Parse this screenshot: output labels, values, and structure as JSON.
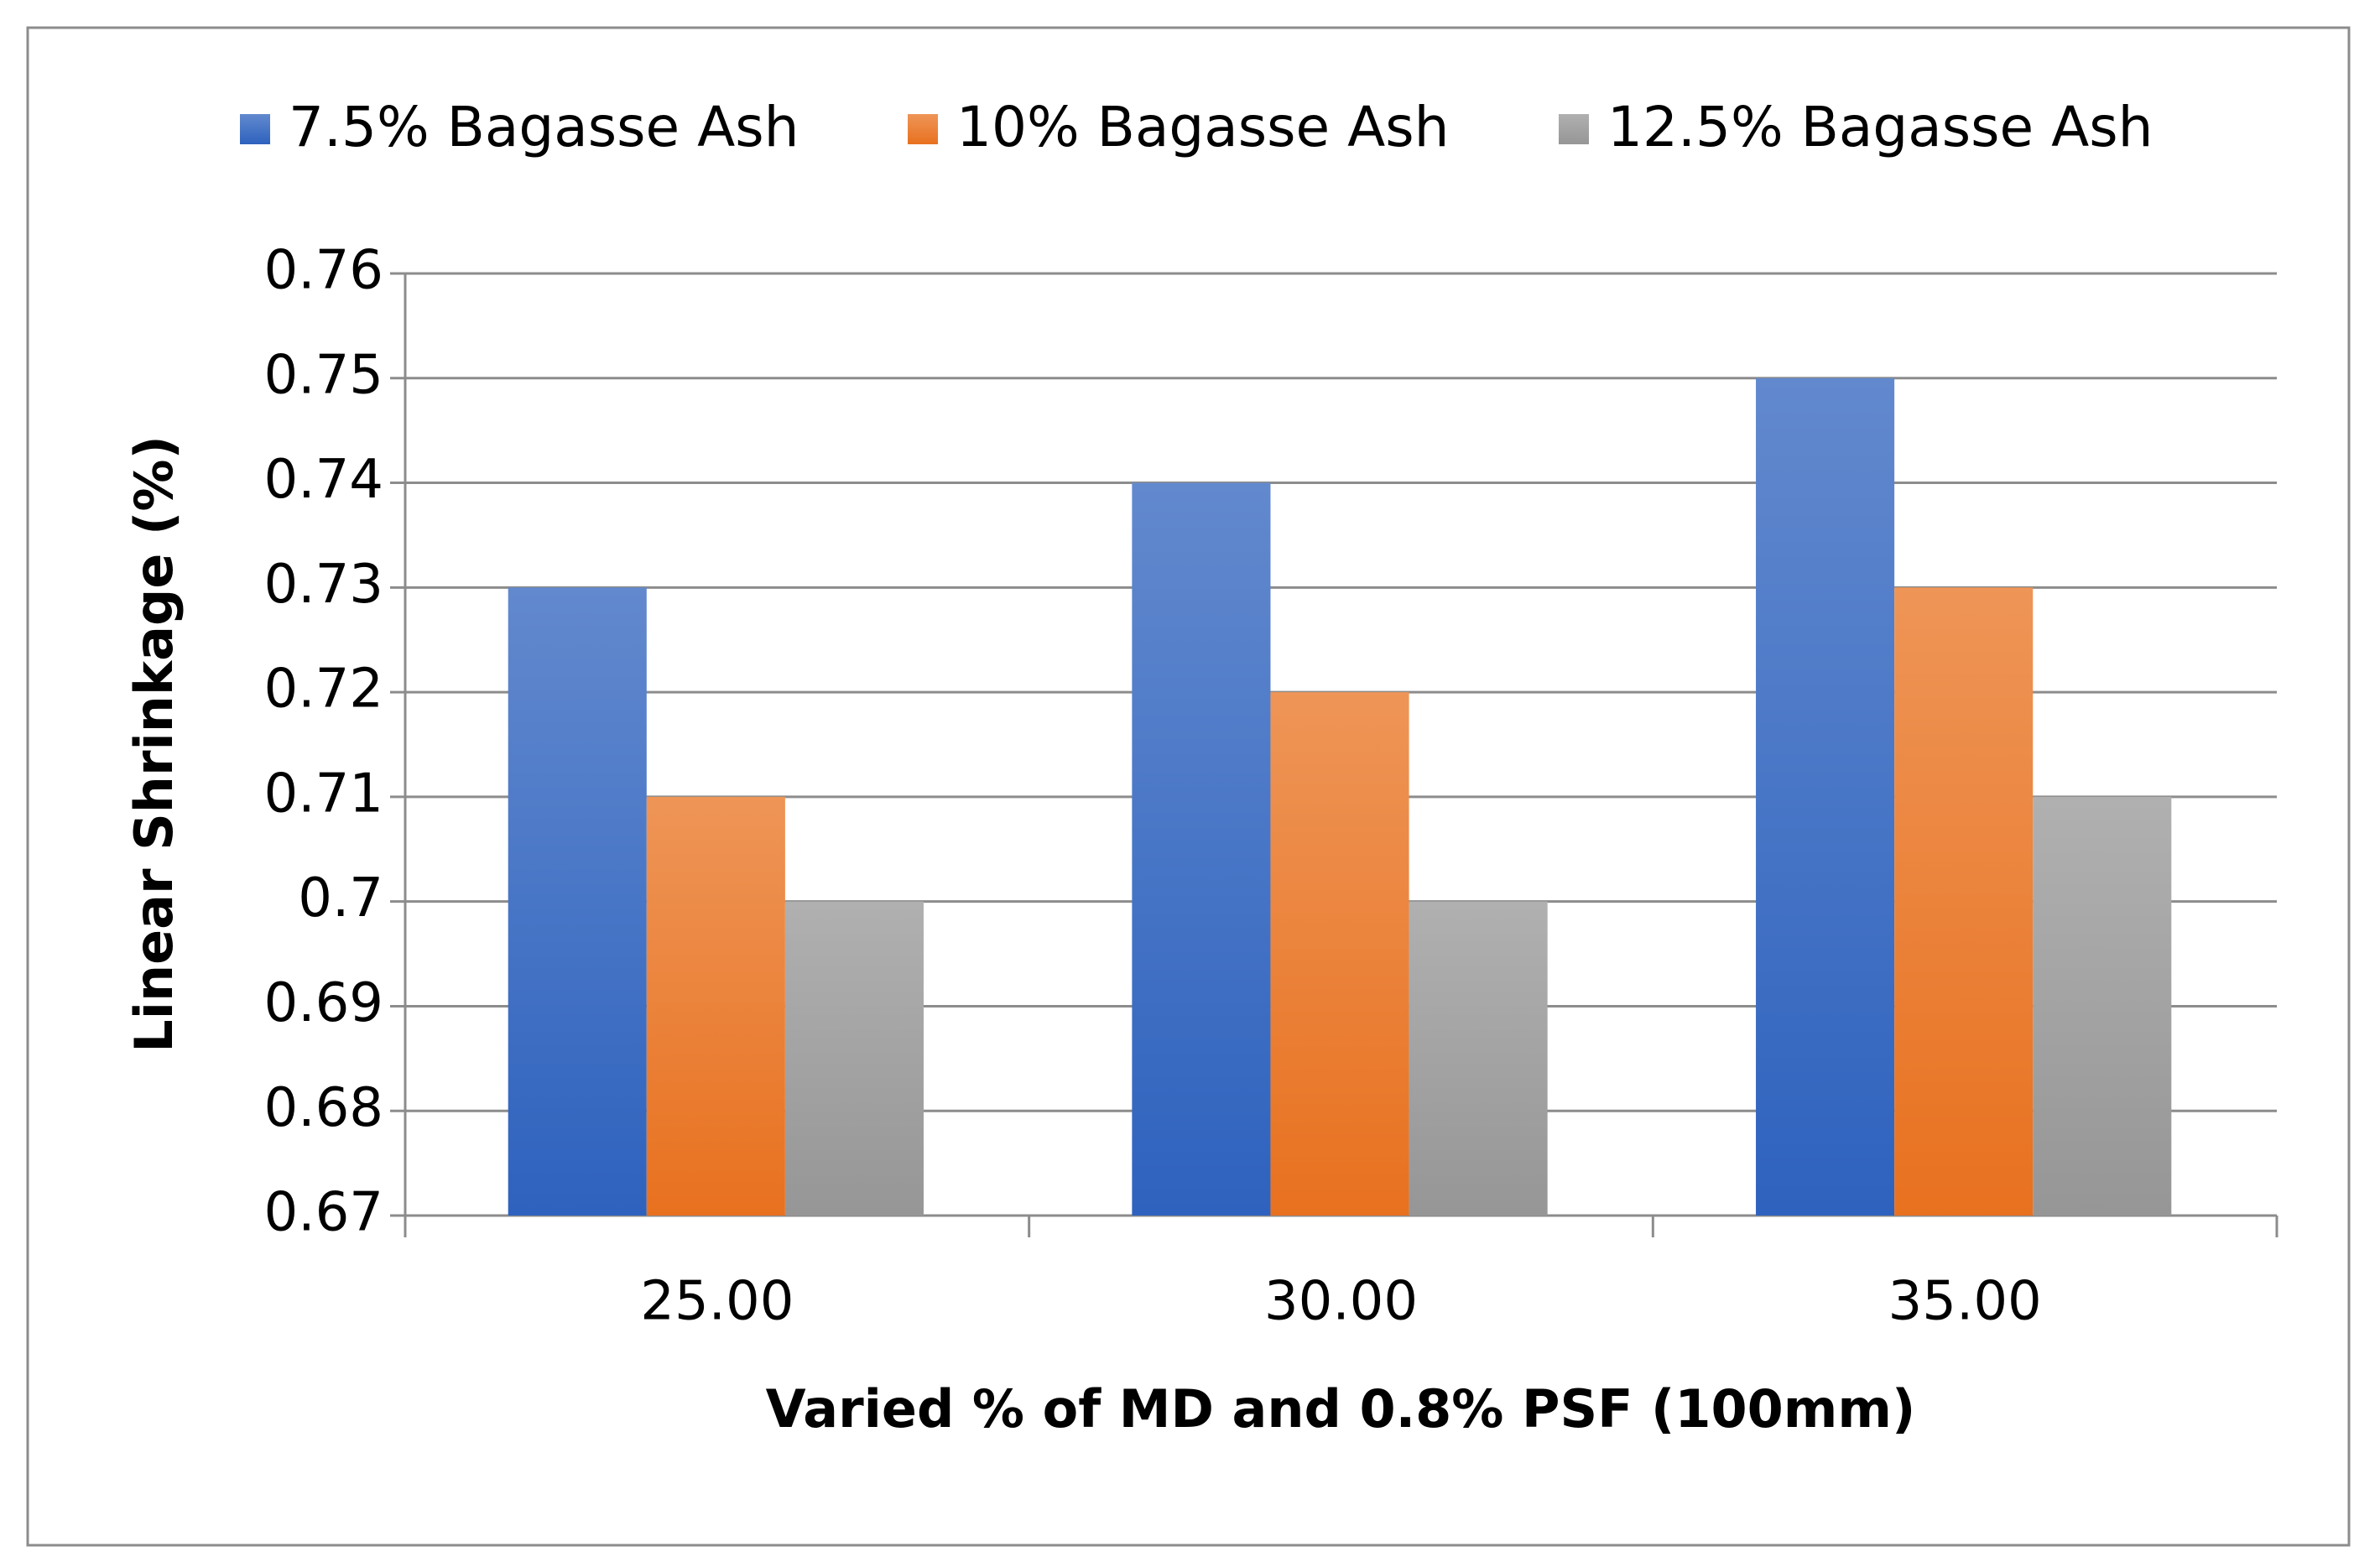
{
  "chart_data": {
    "type": "bar",
    "categories": [
      "25.00",
      "30.00",
      "35.00"
    ],
    "series": [
      {
        "name": "7.5% Bagasse Ash",
        "color": "#2e62be",
        "values": [
          0.73,
          0.74,
          0.75
        ]
      },
      {
        "name": "10% Bagasse Ash",
        "color": "#e8711f",
        "values": [
          0.71,
          0.72,
          0.73
        ]
      },
      {
        "name": "12.5% Bagasse Ash",
        "color": "#969696",
        "values": [
          0.7,
          0.7,
          0.71
        ]
      }
    ],
    "x_label": "Varied % of MD and 0.8% PSF (100mm)",
    "y_label": "Linear Shrinkage (%)",
    "ylim": [
      0.67,
      0.76
    ],
    "yticks": [
      0.67,
      0.68,
      0.69,
      0.7,
      0.71,
      0.72,
      0.73,
      0.74,
      0.75,
      0.76
    ],
    "grid": true,
    "legend": "top"
  }
}
